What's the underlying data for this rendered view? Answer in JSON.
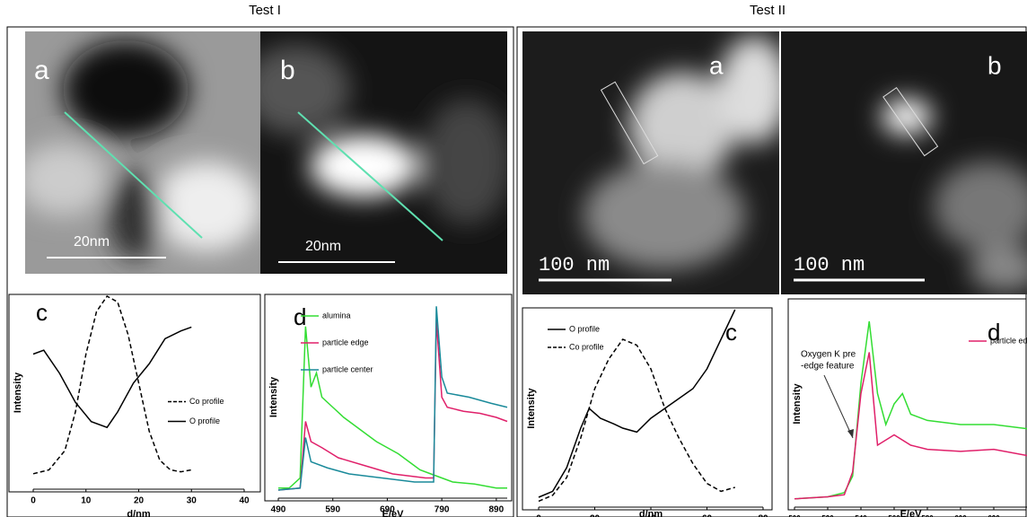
{
  "figure": {
    "test1": "Test I",
    "test2": "Test II",
    "t1a": "a",
    "t1b": "b",
    "t2a": "a",
    "t2b": "b",
    "scale1a": "20nm",
    "scale1b": "20nm",
    "scale2a": "100 nm",
    "scale2b": "100 nm"
  },
  "chart_data": [
    {
      "type": "line",
      "panel": "c",
      "x_label": "d/nm",
      "y_label": "Intensity",
      "xlim": [
        0,
        40
      ],
      "xticks": [
        0,
        10,
        20,
        30,
        40
      ],
      "ylim": [
        0,
        1
      ],
      "legend": "right",
      "series": [
        {
          "name": "Co profile",
          "color": "#000000",
          "dash": true,
          "x": [
            0,
            3,
            6,
            8,
            10,
            12,
            14,
            16,
            18,
            20,
            22,
            24,
            26,
            28,
            30
          ],
          "values": [
            0.08,
            0.1,
            0.2,
            0.4,
            0.7,
            0.92,
            1.0,
            0.97,
            0.8,
            0.55,
            0.3,
            0.15,
            0.1,
            0.09,
            0.1
          ]
        },
        {
          "name": "O profile",
          "color": "#000000",
          "dash": false,
          "x": [
            0,
            2,
            5,
            8,
            11,
            14,
            16,
            19,
            22,
            25,
            28,
            30
          ],
          "values": [
            0.7,
            0.72,
            0.6,
            0.45,
            0.35,
            0.32,
            0.4,
            0.55,
            0.65,
            0.78,
            0.82,
            0.84
          ]
        }
      ]
    },
    {
      "type": "line",
      "panel": "d",
      "x_label": "E/eV",
      "y_label": "Intensity",
      "xlim": [
        490,
        910
      ],
      "xticks": [
        490,
        590,
        690,
        790,
        890
      ],
      "ylim": [
        0,
        1
      ],
      "legend": "upper left",
      "series": [
        {
          "name": "alumina",
          "color": "#33dd33",
          "dash": false,
          "x": [
            490,
            510,
            530,
            540,
            550,
            560,
            570,
            590,
            610,
            630,
            650,
            670,
            690,
            710,
            730,
            750,
            770,
            790,
            810,
            850,
            890,
            910
          ],
          "values": [
            0.05,
            0.05,
            0.1,
            0.85,
            0.55,
            0.62,
            0.5,
            0.45,
            0.4,
            0.36,
            0.32,
            0.28,
            0.25,
            0.22,
            0.18,
            0.14,
            0.12,
            0.1,
            0.08,
            0.07,
            0.05,
            0.05
          ]
        },
        {
          "name": "particle edge",
          "color": "#e0206a",
          "dash": false,
          "x": [
            490,
            530,
            540,
            550,
            570,
            600,
            650,
            700,
            760,
            775,
            780,
            790,
            800,
            830,
            860,
            890,
            910
          ],
          "values": [
            0.04,
            0.05,
            0.38,
            0.28,
            0.25,
            0.2,
            0.16,
            0.12,
            0.1,
            0.1,
            0.88,
            0.5,
            0.45,
            0.43,
            0.42,
            0.4,
            0.38
          ]
        },
        {
          "name": "particle center",
          "color": "#1a8a9a",
          "dash": false,
          "x": [
            490,
            530,
            540,
            550,
            580,
            620,
            680,
            740,
            775,
            780,
            790,
            800,
            840,
            880,
            910
          ],
          "values": [
            0.04,
            0.05,
            0.3,
            0.18,
            0.15,
            0.12,
            0.1,
            0.08,
            0.08,
            0.95,
            0.6,
            0.52,
            0.5,
            0.47,
            0.45
          ]
        }
      ]
    },
    {
      "type": "line",
      "panel": "c",
      "x_label": "d/nm",
      "y_label": "Intensity",
      "xlim": [
        0,
        80
      ],
      "xticks": [
        0,
        20,
        40,
        60,
        80
      ],
      "ylim": [
        0,
        1
      ],
      "legend": "upper left",
      "series": [
        {
          "name": "O profile",
          "color": "#000000",
          "dash": false,
          "x": [
            0,
            5,
            10,
            15,
            18,
            22,
            27,
            30,
            35,
            40,
            45,
            50,
            55,
            60,
            65,
            70
          ],
          "values": [
            0.05,
            0.08,
            0.2,
            0.4,
            0.5,
            0.45,
            0.42,
            0.4,
            0.38,
            0.45,
            0.5,
            0.55,
            0.6,
            0.7,
            0.85,
            1.0
          ]
        },
        {
          "name": "Co profile",
          "color": "#000000",
          "dash": true,
          "x": [
            0,
            5,
            10,
            15,
            20,
            25,
            30,
            35,
            40,
            45,
            50,
            55,
            60,
            65,
            70
          ],
          "values": [
            0.03,
            0.06,
            0.15,
            0.35,
            0.6,
            0.75,
            0.85,
            0.82,
            0.7,
            0.5,
            0.35,
            0.22,
            0.12,
            0.08,
            0.1
          ]
        }
      ]
    },
    {
      "type": "line",
      "panel": "d",
      "x_label": "E/eV",
      "y_label": "Intensity",
      "xlim": [
        500,
        640
      ],
      "xticks": [
        500,
        520,
        540,
        560,
        580,
        600,
        620
      ],
      "ylim": [
        0,
        1
      ],
      "legend": "upper right",
      "annotation": [
        "Oxygen K pre",
        "-edge feature"
      ],
      "series": [
        {
          "color": "#33dd33",
          "dash": false,
          "x": [
            500,
            520,
            530,
            535,
            540,
            545,
            550,
            555,
            560,
            565,
            570,
            580,
            600,
            620,
            640
          ],
          "values": [
            0.04,
            0.05,
            0.07,
            0.15,
            0.6,
            0.9,
            0.55,
            0.4,
            0.5,
            0.55,
            0.45,
            0.42,
            0.4,
            0.4,
            0.38
          ]
        },
        {
          "name": "particle edge",
          "color": "#e0206a",
          "dash": false,
          "x": [
            500,
            520,
            530,
            535,
            540,
            545,
            550,
            560,
            570,
            580,
            600,
            620,
            640
          ],
          "values": [
            0.04,
            0.05,
            0.06,
            0.17,
            0.55,
            0.75,
            0.3,
            0.35,
            0.3,
            0.28,
            0.27,
            0.28,
            0.25
          ]
        }
      ]
    }
  ]
}
